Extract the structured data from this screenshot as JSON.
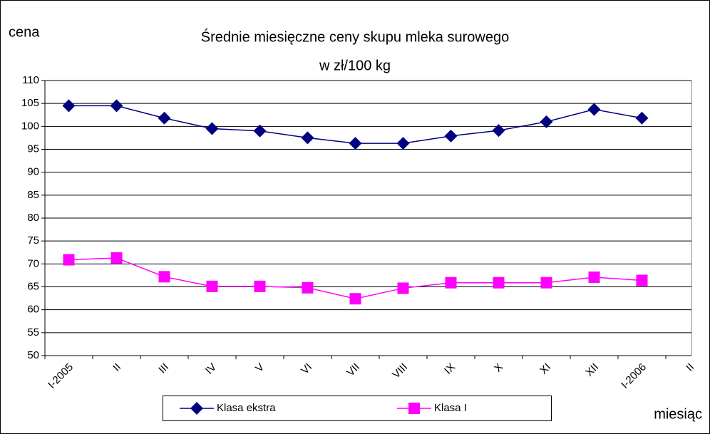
{
  "chart_data": {
    "type": "line",
    "title": "Średnie miesięczne ceny skupu mleka surowego",
    "subtitle": "w zł/100 kg",
    "y_label": "cena",
    "x_label": "miesiąc",
    "categories": [
      "I-2005",
      "II",
      "III",
      "IV",
      "V",
      "VI",
      "VII",
      "VIII",
      "IX",
      "X",
      "XI",
      "XII",
      "I-2006",
      "II"
    ],
    "series": [
      {
        "name": "Klasa ekstra",
        "color": "#000080",
        "marker": "diamond",
        "values": [
          104.5,
          104.5,
          101.8,
          99.5,
          99.0,
          97.5,
          96.3,
          96.3,
          97.9,
          99.1,
          101.0,
          103.7,
          101.8,
          null
        ]
      },
      {
        "name": "Klasa I",
        "color": "#ff00ff",
        "marker": "square",
        "values": [
          70.9,
          71.3,
          67.2,
          65.1,
          65.1,
          64.8,
          62.4,
          64.7,
          65.9,
          65.9,
          65.9,
          67.1,
          66.4,
          null
        ]
      }
    ],
    "ylim": [
      50,
      110
    ],
    "yticks": [
      50,
      55,
      60,
      65,
      70,
      75,
      80,
      85,
      90,
      95,
      100,
      105,
      110
    ],
    "grid": true,
    "legend": "bottom"
  }
}
